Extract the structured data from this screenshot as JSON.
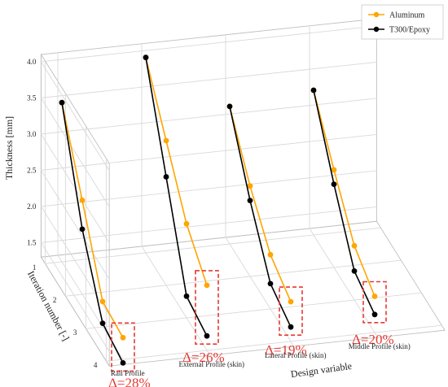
{
  "chart_data": {
    "type": "line",
    "title": "",
    "xlabel": "Design variable",
    "ylabel": "Iteration number [-]",
    "zlabel": "Thickness [mm]",
    "design_variables": [
      "Rail Profile",
      "External Profile (skin)",
      "Lateral Profile (skin)",
      "Middle Profile (skin)"
    ],
    "iterations": [
      "1",
      "2",
      "3",
      "4"
    ],
    "z_ticks": [
      "1.5",
      "2.0",
      "2.5",
      "3.0",
      "3.5",
      "4.0"
    ],
    "zlim": [
      1.3,
      4.1
    ],
    "legend_position": "top-right",
    "grid": true,
    "series": [
      {
        "name": "Aluminum",
        "color": "#FFA500",
        "values": [
          [
            3.5,
            2.6,
            1.65,
            1.6
          ],
          [
            4.0,
            3.3,
            2.6,
            2.2
          ],
          [
            3.2,
            2.55,
            2.05,
            1.85
          ],
          [
            3.3,
            2.65,
            2.05,
            1.8
          ]
        ]
      },
      {
        "name": "T300/Epoxy",
        "color": "#000000",
        "values": [
          [
            3.5,
            2.2,
            1.35,
            1.25
          ],
          [
            4.0,
            2.8,
            1.6,
            1.5
          ],
          [
            3.2,
            2.35,
            1.65,
            1.5
          ],
          [
            3.3,
            2.45,
            1.7,
            1.55
          ]
        ]
      }
    ],
    "annotations": [
      "Δ=28%",
      "Δ=26%",
      "Δ=19%",
      "Δ=20%"
    ]
  }
}
